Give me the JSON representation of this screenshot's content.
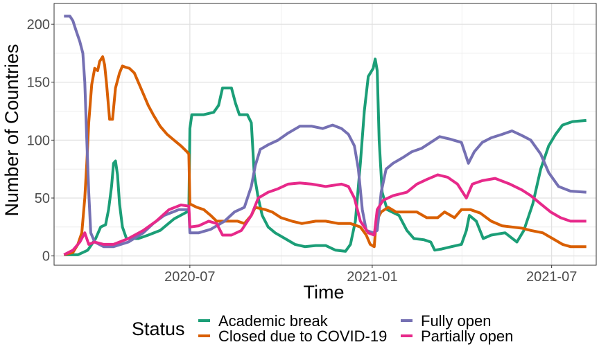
{
  "chart_data": {
    "type": "line",
    "xlabel": "Time",
    "ylabel": "Number of Countries",
    "xlim": [
      "2020-02-15",
      "2021-08-15"
    ],
    "ylim": [
      -8,
      218
    ],
    "x_ticks": [
      "2020-07",
      "2021-01",
      "2021-07"
    ],
    "x_tick_dates": [
      "2020-07-01",
      "2021-01-01",
      "2021-07-01"
    ],
    "y_ticks": [
      0,
      50,
      100,
      150,
      200
    ],
    "grid": true,
    "legend": {
      "title": "Status",
      "position": "bottom"
    },
    "series": [
      {
        "name": "Academic break",
        "color": "#1b9e77",
        "points": [
          [
            "2020-02-25",
            1
          ],
          [
            "2020-03-10",
            1
          ],
          [
            "2020-03-20",
            5
          ],
          [
            "2020-03-28",
            15
          ],
          [
            "2020-04-02",
            25
          ],
          [
            "2020-04-07",
            27
          ],
          [
            "2020-04-10",
            40
          ],
          [
            "2020-04-13",
            60
          ],
          [
            "2020-04-15",
            80
          ],
          [
            "2020-04-17",
            82
          ],
          [
            "2020-04-19",
            70
          ],
          [
            "2020-04-21",
            45
          ],
          [
            "2020-04-24",
            25
          ],
          [
            "2020-04-28",
            15
          ],
          [
            "2020-05-10",
            15
          ],
          [
            "2020-05-20",
            18
          ],
          [
            "2020-06-01",
            22
          ],
          [
            "2020-06-15",
            32
          ],
          [
            "2020-06-28",
            38
          ],
          [
            "2020-06-30",
            40
          ],
          [
            "2020-07-01",
            110
          ],
          [
            "2020-07-03",
            122
          ],
          [
            "2020-07-15",
            122
          ],
          [
            "2020-07-25",
            124
          ],
          [
            "2020-07-30",
            130
          ],
          [
            "2020-08-03",
            145
          ],
          [
            "2020-08-12",
            145
          ],
          [
            "2020-08-16",
            132
          ],
          [
            "2020-08-20",
            122
          ],
          [
            "2020-08-28",
            122
          ],
          [
            "2020-09-01",
            115
          ],
          [
            "2020-09-04",
            70
          ],
          [
            "2020-09-08",
            50
          ],
          [
            "2020-09-12",
            35
          ],
          [
            "2020-09-18",
            25
          ],
          [
            "2020-09-25",
            20
          ],
          [
            "2020-10-05",
            15
          ],
          [
            "2020-10-15",
            10
          ],
          [
            "2020-10-25",
            8
          ],
          [
            "2020-11-05",
            9
          ],
          [
            "2020-11-15",
            9
          ],
          [
            "2020-11-25",
            5
          ],
          [
            "2020-12-05",
            4
          ],
          [
            "2020-12-10",
            10
          ],
          [
            "2020-12-15",
            30
          ],
          [
            "2020-12-20",
            80
          ],
          [
            "2020-12-24",
            125
          ],
          [
            "2020-12-28",
            155
          ],
          [
            "2021-01-02",
            162
          ],
          [
            "2021-01-04",
            170
          ],
          [
            "2021-01-06",
            160
          ],
          [
            "2021-01-08",
            100
          ],
          [
            "2021-01-11",
            55
          ],
          [
            "2021-01-16",
            40
          ],
          [
            "2021-01-28",
            35
          ],
          [
            "2021-02-05",
            22
          ],
          [
            "2021-02-12",
            15
          ],
          [
            "2021-02-22",
            14
          ],
          [
            "2021-03-01",
            12
          ],
          [
            "2021-03-05",
            5
          ],
          [
            "2021-03-12",
            6
          ],
          [
            "2021-03-22",
            8
          ],
          [
            "2021-04-01",
            10
          ],
          [
            "2021-04-06",
            22
          ],
          [
            "2021-04-09",
            35
          ],
          [
            "2021-04-16",
            30
          ],
          [
            "2021-04-23",
            15
          ],
          [
            "2021-05-01",
            18
          ],
          [
            "2021-05-15",
            20
          ],
          [
            "2021-05-27",
            12
          ],
          [
            "2021-06-03",
            22
          ],
          [
            "2021-06-12",
            45
          ],
          [
            "2021-06-20",
            75
          ],
          [
            "2021-06-28",
            95
          ],
          [
            "2021-07-05",
            105
          ],
          [
            "2021-07-12",
            113
          ],
          [
            "2021-07-22",
            116
          ],
          [
            "2021-08-05",
            117
          ]
        ]
      },
      {
        "name": "Closed due to COVID-19",
        "color": "#d95f02",
        "points": [
          [
            "2020-02-25",
            1
          ],
          [
            "2020-03-05",
            3
          ],
          [
            "2020-03-10",
            10
          ],
          [
            "2020-03-14",
            20
          ],
          [
            "2020-03-17",
            50
          ],
          [
            "2020-03-19",
            80
          ],
          [
            "2020-03-21",
            115
          ],
          [
            "2020-03-24",
            148
          ],
          [
            "2020-03-27",
            162
          ],
          [
            "2020-03-30",
            160
          ],
          [
            "2020-04-01",
            168
          ],
          [
            "2020-04-04",
            172
          ],
          [
            "2020-04-06",
            165
          ],
          [
            "2020-04-08",
            148
          ],
          [
            "2020-04-11",
            118
          ],
          [
            "2020-04-14",
            118
          ],
          [
            "2020-04-17",
            145
          ],
          [
            "2020-04-21",
            158
          ],
          [
            "2020-04-24",
            164
          ],
          [
            "2020-04-27",
            163
          ],
          [
            "2020-05-01",
            162
          ],
          [
            "2020-05-06",
            158
          ],
          [
            "2020-05-10",
            150
          ],
          [
            "2020-05-15",
            140
          ],
          [
            "2020-05-20",
            130
          ],
          [
            "2020-05-25",
            122
          ],
          [
            "2020-06-01",
            112
          ],
          [
            "2020-06-08",
            105
          ],
          [
            "2020-06-15",
            100
          ],
          [
            "2020-06-22",
            95
          ],
          [
            "2020-06-28",
            90
          ],
          [
            "2020-06-30",
            88
          ],
          [
            "2020-07-01",
            45
          ],
          [
            "2020-07-08",
            42
          ],
          [
            "2020-07-15",
            40
          ],
          [
            "2020-07-22",
            35
          ],
          [
            "2020-07-28",
            30
          ],
          [
            "2020-08-10",
            30
          ],
          [
            "2020-08-18",
            30
          ],
          [
            "2020-08-25",
            28
          ],
          [
            "2020-09-01",
            35
          ],
          [
            "2020-09-05",
            42
          ],
          [
            "2020-09-15",
            40
          ],
          [
            "2020-09-22",
            38
          ],
          [
            "2020-10-01",
            33
          ],
          [
            "2020-10-12",
            30
          ],
          [
            "2020-10-22",
            28
          ],
          [
            "2020-11-05",
            30
          ],
          [
            "2020-11-15",
            30
          ],
          [
            "2020-11-28",
            28
          ],
          [
            "2020-12-10",
            28
          ],
          [
            "2020-12-20",
            25
          ],
          [
            "2020-12-26",
            18
          ],
          [
            "2020-12-30",
            10
          ],
          [
            "2021-01-03",
            8
          ],
          [
            "2021-01-05",
            30
          ],
          [
            "2021-01-10",
            38
          ],
          [
            "2021-01-17",
            42
          ],
          [
            "2021-01-25",
            38
          ],
          [
            "2021-02-05",
            38
          ],
          [
            "2021-02-15",
            38
          ],
          [
            "2021-02-25",
            33
          ],
          [
            "2021-03-08",
            33
          ],
          [
            "2021-03-15",
            38
          ],
          [
            "2021-03-25",
            33
          ],
          [
            "2021-04-01",
            40
          ],
          [
            "2021-04-10",
            40
          ],
          [
            "2021-04-20",
            37
          ],
          [
            "2021-05-01",
            30
          ],
          [
            "2021-05-12",
            26
          ],
          [
            "2021-05-22",
            25
          ],
          [
            "2021-06-01",
            24
          ],
          [
            "2021-06-10",
            22
          ],
          [
            "2021-06-22",
            20
          ],
          [
            "2021-07-02",
            15
          ],
          [
            "2021-07-12",
            10
          ],
          [
            "2021-07-20",
            8
          ],
          [
            "2021-08-05",
            8
          ]
        ]
      },
      {
        "name": "Fully open",
        "color": "#7570b3",
        "points": [
          [
            "2020-02-25",
            207
          ],
          [
            "2020-03-02",
            207
          ],
          [
            "2020-03-05",
            203
          ],
          [
            "2020-03-08",
            195
          ],
          [
            "2020-03-12",
            185
          ],
          [
            "2020-03-15",
            175
          ],
          [
            "2020-03-17",
            150
          ],
          [
            "2020-03-19",
            100
          ],
          [
            "2020-03-21",
            55
          ],
          [
            "2020-03-23",
            20
          ],
          [
            "2020-03-27",
            12
          ],
          [
            "2020-04-05",
            8
          ],
          [
            "2020-04-15",
            8
          ],
          [
            "2020-04-30",
            12
          ],
          [
            "2020-05-15",
            20
          ],
          [
            "2020-05-25",
            28
          ],
          [
            "2020-06-05",
            35
          ],
          [
            "2020-06-20",
            40
          ],
          [
            "2020-06-30",
            40
          ],
          [
            "2020-07-01",
            20
          ],
          [
            "2020-07-10",
            20
          ],
          [
            "2020-07-22",
            23
          ],
          [
            "2020-08-05",
            30
          ],
          [
            "2020-08-15",
            38
          ],
          [
            "2020-08-25",
            42
          ],
          [
            "2020-09-01",
            60
          ],
          [
            "2020-09-05",
            78
          ],
          [
            "2020-09-10",
            92
          ],
          [
            "2020-09-18",
            96
          ],
          [
            "2020-09-28",
            100
          ],
          [
            "2020-10-08",
            106
          ],
          [
            "2020-10-20",
            112
          ],
          [
            "2020-11-01",
            112
          ],
          [
            "2020-11-12",
            110
          ],
          [
            "2020-11-22",
            113
          ],
          [
            "2020-12-01",
            110
          ],
          [
            "2020-12-08",
            105
          ],
          [
            "2020-12-14",
            95
          ],
          [
            "2020-12-18",
            75
          ],
          [
            "2020-12-22",
            40
          ],
          [
            "2020-12-26",
            22
          ],
          [
            "2021-01-02",
            20
          ],
          [
            "2021-01-06",
            22
          ],
          [
            "2021-01-10",
            55
          ],
          [
            "2021-01-15",
            75
          ],
          [
            "2021-01-22",
            80
          ],
          [
            "2021-02-01",
            85
          ],
          [
            "2021-02-10",
            90
          ],
          [
            "2021-02-20",
            93
          ],
          [
            "2021-03-01",
            98
          ],
          [
            "2021-03-10",
            103
          ],
          [
            "2021-03-20",
            101
          ],
          [
            "2021-04-01",
            98
          ],
          [
            "2021-04-08",
            80
          ],
          [
            "2021-04-14",
            90
          ],
          [
            "2021-04-22",
            98
          ],
          [
            "2021-05-01",
            102
          ],
          [
            "2021-05-12",
            105
          ],
          [
            "2021-05-22",
            108
          ],
          [
            "2021-06-01",
            104
          ],
          [
            "2021-06-10",
            100
          ],
          [
            "2021-06-20",
            88
          ],
          [
            "2021-06-28",
            72
          ],
          [
            "2021-07-08",
            60
          ],
          [
            "2021-07-20",
            56
          ],
          [
            "2021-08-05",
            55
          ]
        ]
      },
      {
        "name": "Partially open",
        "color": "#e7298a",
        "points": [
          [
            "2020-02-25",
            1
          ],
          [
            "2020-03-05",
            5
          ],
          [
            "2020-03-12",
            12
          ],
          [
            "2020-03-17",
            20
          ],
          [
            "2020-03-21",
            10
          ],
          [
            "2020-03-27",
            12
          ],
          [
            "2020-04-05",
            10
          ],
          [
            "2020-04-15",
            10
          ],
          [
            "2020-04-30",
            15
          ],
          [
            "2020-05-15",
            22
          ],
          [
            "2020-05-28",
            30
          ],
          [
            "2020-06-10",
            40
          ],
          [
            "2020-06-22",
            44
          ],
          [
            "2020-06-30",
            43
          ],
          [
            "2020-07-01",
            25
          ],
          [
            "2020-07-10",
            26
          ],
          [
            "2020-07-20",
            30
          ],
          [
            "2020-07-28",
            28
          ],
          [
            "2020-08-03",
            18
          ],
          [
            "2020-08-12",
            18
          ],
          [
            "2020-08-22",
            22
          ],
          [
            "2020-09-01",
            35
          ],
          [
            "2020-09-08",
            50
          ],
          [
            "2020-09-18",
            55
          ],
          [
            "2020-09-28",
            58
          ],
          [
            "2020-10-08",
            62
          ],
          [
            "2020-10-20",
            63
          ],
          [
            "2020-11-01",
            62
          ],
          [
            "2020-11-15",
            60
          ],
          [
            "2020-12-01",
            62
          ],
          [
            "2020-12-08",
            60
          ],
          [
            "2020-12-14",
            50
          ],
          [
            "2020-12-20",
            30
          ],
          [
            "2020-12-28",
            20
          ],
          [
            "2021-01-03",
            18
          ],
          [
            "2021-01-06",
            40
          ],
          [
            "2021-01-12",
            48
          ],
          [
            "2021-01-22",
            52
          ],
          [
            "2021-02-05",
            55
          ],
          [
            "2021-02-15",
            62
          ],
          [
            "2021-02-25",
            66
          ],
          [
            "2021-03-08",
            70
          ],
          [
            "2021-03-18",
            68
          ],
          [
            "2021-03-28",
            62
          ],
          [
            "2021-04-06",
            50
          ],
          [
            "2021-04-12",
            62
          ],
          [
            "2021-04-22",
            65
          ],
          [
            "2021-05-05",
            67
          ],
          [
            "2021-05-20",
            62
          ],
          [
            "2021-06-01",
            57
          ],
          [
            "2021-06-10",
            52
          ],
          [
            "2021-06-20",
            45
          ],
          [
            "2021-06-30",
            38
          ],
          [
            "2021-07-10",
            33
          ],
          [
            "2021-07-20",
            30
          ],
          [
            "2021-08-05",
            30
          ]
        ]
      }
    ]
  }
}
